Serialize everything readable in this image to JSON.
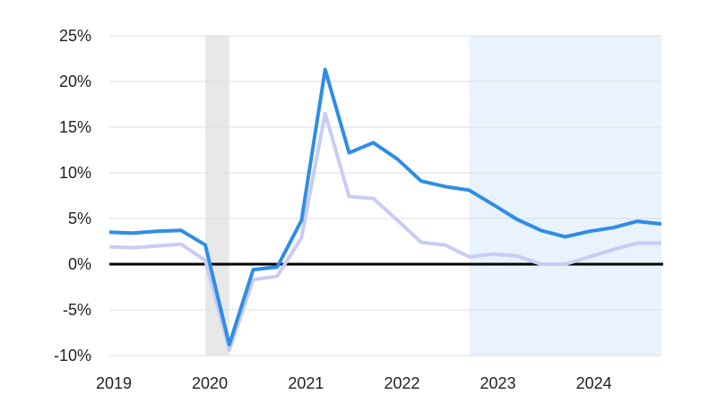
{
  "chart_data": {
    "type": "line",
    "title": "",
    "xlabel": "",
    "ylabel": "",
    "ylim": [
      -10,
      25
    ],
    "xlim": [
      "2019-01-01",
      "2024-10-01"
    ],
    "grid": true,
    "y_ticks": [
      {
        "value": 25,
        "label": "25%"
      },
      {
        "value": 20,
        "label": "20%"
      },
      {
        "value": 15,
        "label": "15%"
      },
      {
        "value": 10,
        "label": "10%"
      },
      {
        "value": 5,
        "label": "5%"
      },
      {
        "value": 0,
        "label": "0%"
      },
      {
        "value": -5,
        "label": "-5%"
      },
      {
        "value": -10,
        "label": "-10%"
      }
    ],
    "x_ticks": [
      {
        "value": "2019-01-01",
        "label": "2019"
      },
      {
        "value": "2020-01-01",
        "label": "2020"
      },
      {
        "value": "2021-01-01",
        "label": "2021"
      },
      {
        "value": "2022-01-01",
        "label": "2022"
      },
      {
        "value": "2023-01-01",
        "label": "2023"
      },
      {
        "value": "2024-01-01",
        "label": "2024"
      }
    ],
    "shaded_regions": [
      {
        "start": "2020-01-01",
        "end": "2020-04-01",
        "color": "#e8e8e8"
      },
      {
        "start": "2022-10-01",
        "end": "2024-10-01",
        "color": "#e8f3fd"
      }
    ],
    "x": [
      "2019-01-01",
      "2019-04-01",
      "2019-07-01",
      "2019-10-01",
      "2020-01-01",
      "2020-04-01",
      "2020-07-01",
      "2020-10-01",
      "2021-01-01",
      "2021-04-01",
      "2021-07-01",
      "2021-10-01",
      "2022-01-01",
      "2022-04-01",
      "2022-07-01",
      "2022-10-01",
      "2023-01-01",
      "2023-04-01",
      "2023-07-01",
      "2023-10-01",
      "2024-01-01",
      "2024-04-01",
      "2024-07-01",
      "2024-10-01"
    ],
    "series": [
      {
        "color": "#c9ccf3",
        "values": [
          1.9,
          1.8,
          2.0,
          2.2,
          0.4,
          -9.4,
          -1.7,
          -1.3,
          2.9,
          16.5,
          7.4,
          7.2,
          4.8,
          2.4,
          2.1,
          0.8,
          1.1,
          0.9,
          0.0,
          0.0,
          0.8,
          1.6,
          2.3,
          2.3
        ]
      },
      {
        "color": "#2f8de4",
        "values": [
          3.5,
          3.4,
          3.6,
          3.7,
          2.1,
          -8.8,
          -0.6,
          -0.3,
          4.8,
          21.3,
          12.2,
          13.3,
          11.5,
          9.1,
          8.5,
          8.1,
          6.5,
          4.9,
          3.7,
          3.0,
          3.6,
          4.0,
          4.7,
          4.4
        ]
      }
    ]
  }
}
